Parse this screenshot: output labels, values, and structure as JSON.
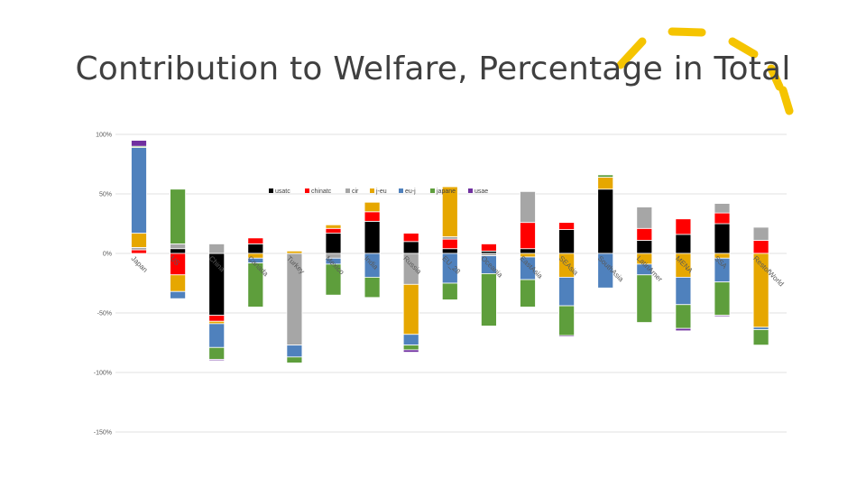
{
  "slide": {
    "title": "Contribution to Welfare, Percentage in Total"
  },
  "colors": {
    "decor_accent": "#F5C400",
    "gridline": "#D9D9D9",
    "axis_text": "#595959"
  },
  "chart_data": {
    "type": "bar",
    "stacked": true,
    "title": "",
    "xlabel": "",
    "ylabel": "",
    "ylim": [
      -150,
      100
    ],
    "yticks": [
      100,
      50,
      0,
      -50,
      -100,
      -150
    ],
    "ytick_labels": [
      "100%",
      "50%",
      "0%",
      "-50%",
      "-100%",
      "-150%"
    ],
    "categories": [
      "Japan",
      "US",
      "China",
      "Canada",
      "Turkey",
      "Mexico",
      "India",
      "Russia",
      "EU_28",
      "Oceania",
      "EastAsia",
      "SEAsia",
      "SouthAsia",
      "LatinAmer",
      "MENA",
      "SSA",
      "RestofWorld"
    ],
    "legend_position": "top-center",
    "series": [
      {
        "name": "usatc",
        "color": "#000000",
        "values": [
          0,
          4,
          -52,
          8,
          0,
          17,
          27,
          10,
          4,
          2,
          4,
          20,
          54,
          11,
          16,
          25,
          0
        ]
      },
      {
        "name": "chinatc",
        "color": "#FF0000",
        "values": [
          3,
          -18,
          -5,
          5,
          0,
          4,
          8,
          7,
          8,
          6,
          22,
          6,
          0,
          10,
          13,
          9,
          11
        ]
      },
      {
        "name": "cir",
        "color": "#A6A6A6",
        "values": [
          2,
          4,
          8,
          0,
          -77,
          -4,
          0,
          -26,
          2,
          -2,
          26,
          0,
          0,
          18,
          0,
          8,
          11
        ]
      },
      {
        "name": "j-eu",
        "color": "#E6A700",
        "values": [
          12,
          -14,
          -2,
          -4,
          2,
          3,
          8,
          -42,
          42,
          0,
          -3,
          -20,
          10,
          -9,
          -20,
          -4,
          -62
        ]
      },
      {
        "name": "eu-j",
        "color": "#4F81BD",
        "values": [
          72,
          -6,
          -20,
          -4,
          -10,
          -5,
          -20,
          -9,
          -25,
          -15,
          -19,
          -24,
          -29,
          -9,
          -23,
          -20,
          -2
        ]
      },
      {
        "name": "japane",
        "color": "#5E9E3C",
        "values": [
          1,
          46,
          -10,
          -37,
          -5,
          -26,
          -17,
          -4,
          -14,
          -44,
          -23,
          -25,
          2,
          -40,
          -20,
          -28,
          -13
        ]
      },
      {
        "name": "usae",
        "color": "#7030A0",
        "values": [
          5,
          0,
          -1,
          0,
          0,
          0,
          0,
          -2,
          0,
          0,
          0,
          -1,
          0,
          0,
          -2,
          -1,
          0
        ]
      }
    ]
  }
}
